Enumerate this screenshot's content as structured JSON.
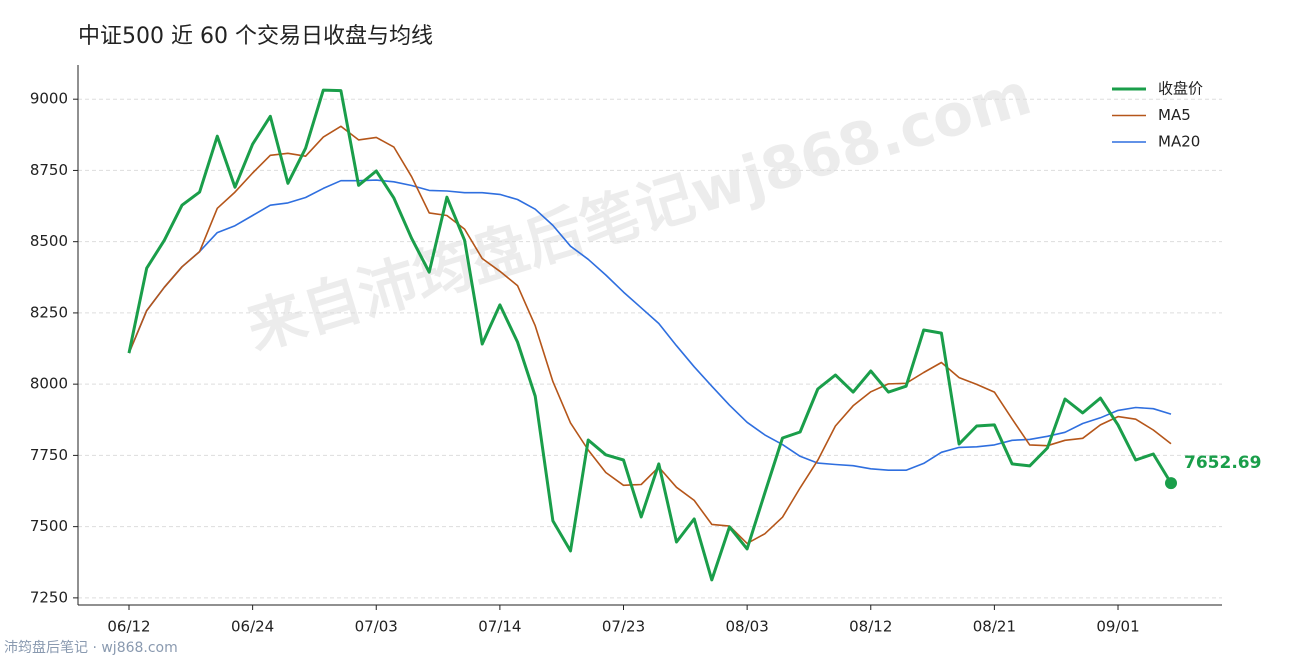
{
  "chart_data": {
    "type": "line",
    "title": "中证500 近 60 个交易日收盘与均线",
    "watermark": "来自沛筠盘后笔记wj868.com",
    "footer": "沛筠盘后笔记 · wj868.com",
    "categories": [
      "06/12",
      null,
      null,
      null,
      null,
      null,
      null,
      "06/24",
      null,
      null,
      null,
      null,
      null,
      null,
      "07/03",
      null,
      null,
      null,
      null,
      null,
      null,
      "07/14",
      null,
      null,
      null,
      null,
      null,
      null,
      "07/23",
      null,
      null,
      null,
      null,
      null,
      null,
      "08/03",
      null,
      null,
      null,
      null,
      null,
      null,
      "08/12",
      null,
      null,
      null,
      null,
      null,
      null,
      "08/21",
      null,
      null,
      null,
      null,
      null,
      null,
      "09/01",
      null,
      null,
      null
    ],
    "series": [
      {
        "name": "收盘价",
        "color": "#1a9e4a",
        "values": [
          8109,
          8407,
          8505,
          8628,
          8674,
          8870,
          8691,
          8842,
          8940,
          8705,
          8828,
          9032,
          9030,
          8698,
          8748,
          8653,
          8512,
          8393,
          8656,
          8505,
          8141,
          8278,
          8148,
          7958,
          7520,
          7415,
          7804,
          7752,
          7734,
          7534,
          7720,
          7446,
          7527,
          7313,
          7499,
          7422,
          7618,
          7811,
          7832,
          7983,
          8032,
          7972,
          8046,
          7972,
          7993,
          8190,
          8179,
          7790,
          7853,
          7857,
          7720,
          7713,
          7776,
          7948,
          7899,
          7951,
          7857,
          7734,
          7755,
          7652.69
        ]
      },
      {
        "name": "MA5",
        "color": "#b5561a",
        "values": [
          8109,
          8258,
          8340,
          8412,
          8465,
          8617,
          8674,
          8741,
          8803,
          8810,
          8800,
          8867,
          8905,
          8857,
          8866,
          8832,
          8728,
          8601,
          8592,
          8544,
          8441,
          8396,
          8346,
          8205,
          8009,
          7864,
          7769,
          7690,
          7645,
          7648,
          7709,
          7638,
          7592,
          7508,
          7502,
          7441,
          7475,
          7533,
          7636,
          7733,
          7853,
          7924,
          7973,
          8001,
          8003,
          8041,
          8076,
          8023,
          7999,
          7972,
          7878,
          7787,
          7784,
          7803,
          7810,
          7857,
          7886,
          7877,
          7839,
          7791
        ]
      },
      {
        "name": "MA20",
        "color": "#2f6fdf",
        "values": [
          8109,
          8258,
          8340,
          8412,
          8465,
          8532,
          8556,
          8592,
          8628,
          8636,
          8655,
          8687,
          8714,
          8714,
          8716,
          8710,
          8697,
          8680,
          8678,
          8672,
          8672,
          8666,
          8648,
          8614,
          8557,
          8484,
          8438,
          8383,
          8323,
          8268,
          8213,
          8135,
          8061,
          7993,
          7926,
          7866,
          7822,
          7788,
          7747,
          7723,
          7718,
          7714,
          7703,
          7698,
          7698,
          7722,
          7761,
          7778,
          7780,
          7787,
          7803,
          7806,
          7817,
          7831,
          7862,
          7882,
          7908,
          7918,
          7914,
          7895
        ]
      }
    ],
    "ylim": [
      7225,
      9120
    ],
    "yticks": [
      7250,
      7500,
      7750,
      8000,
      8250,
      8500,
      8750,
      9000
    ],
    "grid": true,
    "legend": "top-right"
  }
}
